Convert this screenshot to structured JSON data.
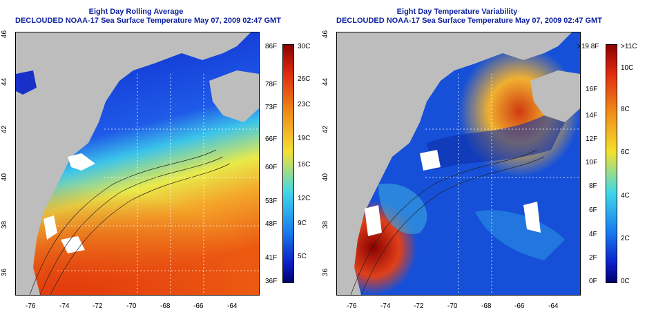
{
  "left_panel": {
    "title": "Eight Day Rolling Average",
    "subtitle": "DECLOUDED NOAA-17 Sea Surface Temperature May 07, 2009 02:47 GMT",
    "colorbar_f_labels": [
      "86F",
      "78F",
      "73F",
      "66F",
      "60F",
      "53F",
      "48F",
      "41F",
      "36F"
    ],
    "colorbar_c_labels": [
      "30C",
      "26C",
      "23C",
      "19C",
      "16C",
      "12C",
      "9C",
      "5C"
    ]
  },
  "right_panel": {
    "title": "Eight Day Temperature Variability",
    "subtitle": "DECLOUDED NOAA-17 Sea Surface Temperature May 07, 2009 02:47 GMT",
    "colorbar_f_labels": [
      ">19.8F",
      "16F",
      "14F",
      "12F",
      "10F",
      "8F",
      "6F",
      "4F",
      "2F",
      "0F"
    ],
    "colorbar_c_labels": [
      ">11C",
      "10C",
      "8C",
      "6C",
      "4C",
      "2C",
      "0C"
    ]
  },
  "x_ticks": [
    "-76",
    "-74",
    "-72",
    "-70",
    "-68",
    "-66",
    "-64"
  ],
  "y_ticks": [
    "46",
    "44",
    "42",
    "40",
    "38",
    "36"
  ],
  "colors": {
    "title": "#0b1e9e",
    "land": "#bdbdbd",
    "cold": "#0a1fc8",
    "warm": "#f06a10",
    "hot": "#a00000"
  }
}
